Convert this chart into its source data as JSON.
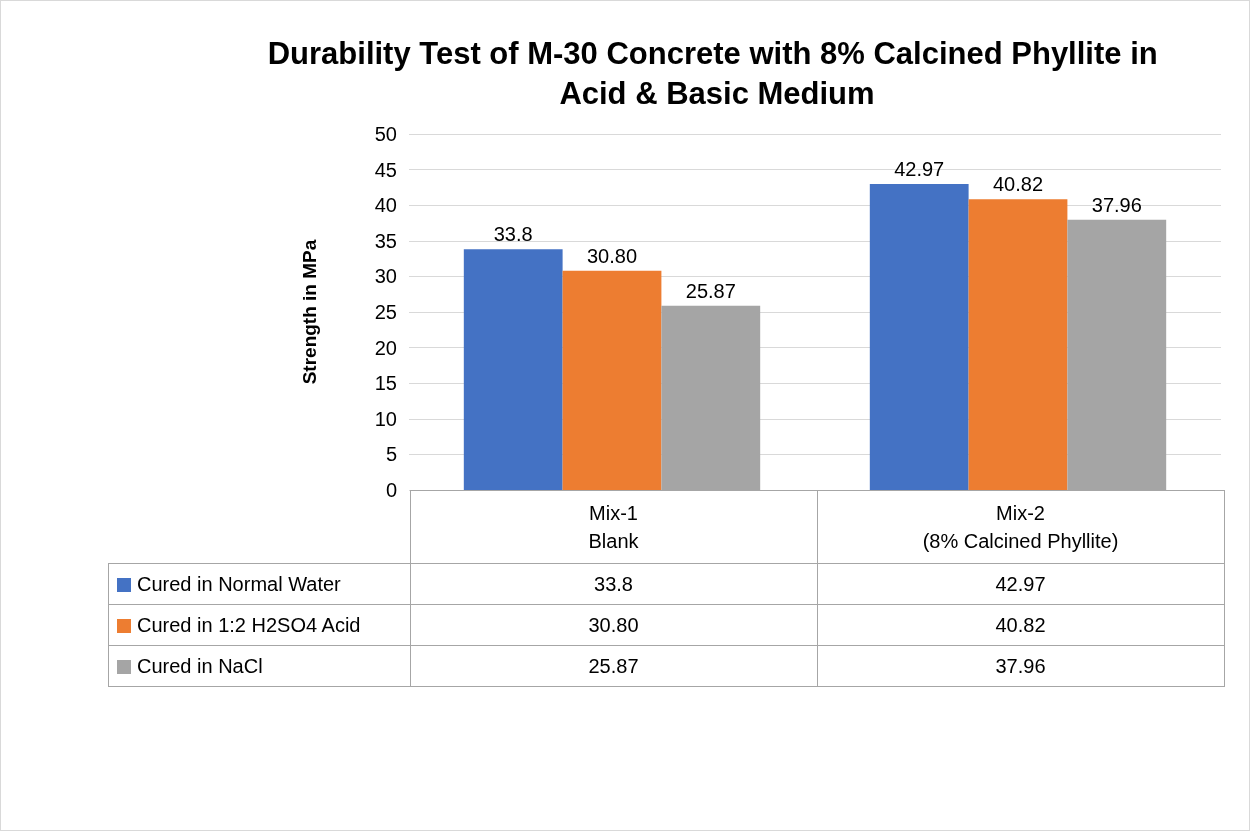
{
  "chart_data": {
    "type": "bar",
    "title": "Durability Test of M-30 Concrete with 8% Calcined Phyllite in Acid & Basic Medium",
    "categories": [
      "Mix-1\nBlank",
      "Mix-2\n(8% Calcined Phyllite)"
    ],
    "ylabel": "Strength in MPa",
    "series": [
      {
        "name": "Cured in Normal Water",
        "color": "#4472c4",
        "values": [
          33.8,
          42.97
        ],
        "value_labels": [
          "33.8",
          "42.97"
        ]
      },
      {
        "name": "Cured in 1:2 H2SO4 Acid",
        "color": "#ed7d31",
        "values": [
          30.8,
          40.82
        ],
        "value_labels": [
          "30.80",
          "40.82"
        ]
      },
      {
        "name": "Cured in NaCl",
        "color": "#a5a5a5",
        "values": [
          25.87,
          37.96
        ],
        "value_labels": [
          "25.87",
          "37.96"
        ]
      }
    ],
    "ylim": [
      0,
      50
    ],
    "yticks": [
      0,
      5,
      10,
      15,
      20,
      25,
      30,
      35,
      40,
      45,
      50
    ],
    "grid": "y",
    "legend": "bottom"
  }
}
